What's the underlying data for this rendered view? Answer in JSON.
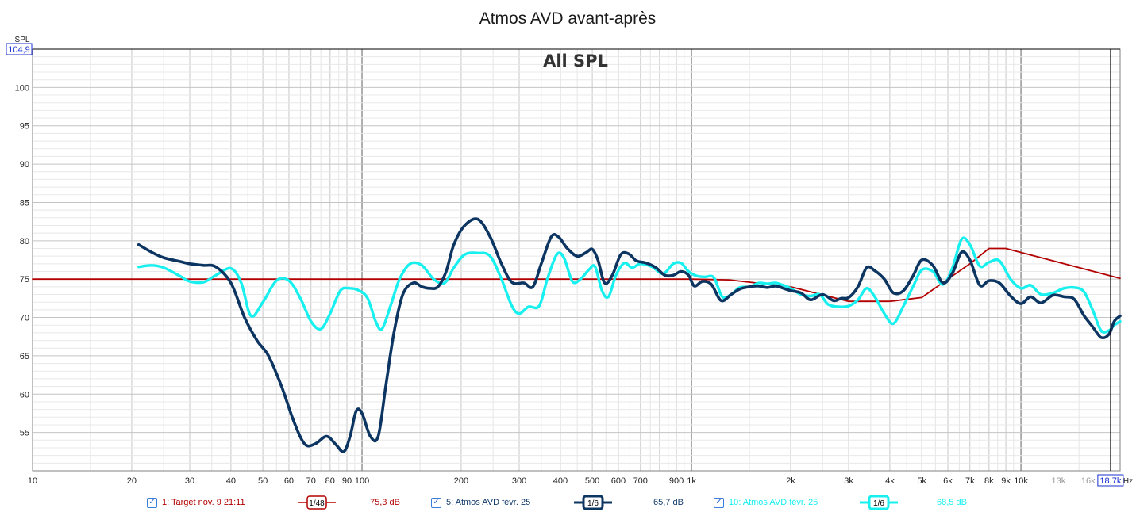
{
  "window": {
    "title": "Atmos AVD avant-après"
  },
  "overlay_title": "All SPL",
  "cursor_readouts": {
    "y_value": "104,9",
    "x_value": "18,7k"
  },
  "chart_data": {
    "type": "line",
    "title": "Atmos AVD avant-après",
    "ylabel": "SPL",
    "xlabel": "Hz",
    "x_scale": "log",
    "xlim": [
      10,
      20000
    ],
    "ylim": [
      50,
      105
    ],
    "grid": true,
    "y_ticks": [
      55,
      60,
      65,
      70,
      75,
      80,
      85,
      90,
      95,
      100
    ],
    "x_ticks": [
      {
        "v": 10,
        "label": "10"
      },
      {
        "v": 20,
        "label": "20"
      },
      {
        "v": 30,
        "label": "30"
      },
      {
        "v": 40,
        "label": "40"
      },
      {
        "v": 50,
        "label": "50"
      },
      {
        "v": 60,
        "label": "60"
      },
      {
        "v": 70,
        "label": "70"
      },
      {
        "v": 80,
        "label": "80"
      },
      {
        "v": 90,
        "label": "90"
      },
      {
        "v": 100,
        "label": "100"
      },
      {
        "v": 200,
        "label": "200"
      },
      {
        "v": 300,
        "label": "300"
      },
      {
        "v": 400,
        "label": "400"
      },
      {
        "v": 500,
        "label": "500"
      },
      {
        "v": 600,
        "label": "600"
      },
      {
        "v": 700,
        "label": "700"
      },
      {
        "v": 900,
        "label": "900"
      },
      {
        "v": 1000,
        "label": "1k"
      },
      {
        "v": 2000,
        "label": "2k"
      },
      {
        "v": 3000,
        "label": "3k"
      },
      {
        "v": 4000,
        "label": "4k"
      },
      {
        "v": 5000,
        "label": "5k"
      },
      {
        "v": 6000,
        "label": "6k"
      },
      {
        "v": 7000,
        "label": "7k"
      },
      {
        "v": 8000,
        "label": "8k"
      },
      {
        "v": 9000,
        "label": "9k"
      },
      {
        "v": 10000,
        "label": "10k"
      },
      {
        "v": 13000,
        "label": "13k",
        "minor": true
      },
      {
        "v": 16000,
        "label": "16k",
        "minor": true
      }
    ],
    "series": [
      {
        "name": "1: Target nov. 9 21:11",
        "color": "#b30000",
        "smoothing": "1/48",
        "level": "75,3 dB",
        "points": [
          [
            10,
            75
          ],
          [
            1000,
            75
          ],
          [
            1300,
            74.9
          ],
          [
            2000,
            74
          ],
          [
            3000,
            72.1
          ],
          [
            4000,
            72.1
          ],
          [
            5000,
            72.6
          ],
          [
            6000,
            75
          ],
          [
            7000,
            77
          ],
          [
            8000,
            79
          ],
          [
            9000,
            79
          ],
          [
            20000,
            75.1
          ]
        ]
      },
      {
        "name": "5: Atmos AVD févr. 25",
        "color": "#0d3561",
        "smoothing": "1/6",
        "level": "65,7 dB",
        "points": [
          [
            21,
            79.5
          ],
          [
            23,
            78.5
          ],
          [
            25,
            77.8
          ],
          [
            28,
            77.3
          ],
          [
            30,
            77
          ],
          [
            33,
            76.8
          ],
          [
            36,
            76.6
          ],
          [
            40,
            74.5
          ],
          [
            44,
            70
          ],
          [
            48,
            67
          ],
          [
            52,
            65
          ],
          [
            57,
            61
          ],
          [
            62,
            56.5
          ],
          [
            67,
            53.5
          ],
          [
            72,
            53.5
          ],
          [
            78,
            54.5
          ],
          [
            83,
            53.5
          ],
          [
            88,
            52.5
          ],
          [
            92,
            54.5
          ],
          [
            96,
            57.8
          ],
          [
            100,
            57.5
          ],
          [
            106,
            54.5
          ],
          [
            112,
            54.5
          ],
          [
            118,
            61
          ],
          [
            125,
            68
          ],
          [
            133,
            73
          ],
          [
            143,
            74.5
          ],
          [
            152,
            74
          ],
          [
            160,
            73.8
          ],
          [
            170,
            74
          ],
          [
            180,
            76
          ],
          [
            190,
            79.5
          ],
          [
            205,
            82
          ],
          [
            225,
            82.8
          ],
          [
            245,
            80.5
          ],
          [
            265,
            77
          ],
          [
            285,
            74.6
          ],
          [
            310,
            74.5
          ],
          [
            330,
            74
          ],
          [
            350,
            77
          ],
          [
            375,
            80.5
          ],
          [
            395,
            80.5
          ],
          [
            420,
            79
          ],
          [
            450,
            78
          ],
          [
            480,
            78.5
          ],
          [
            500,
            78.9
          ],
          [
            520,
            77.5
          ],
          [
            545,
            74.5
          ],
          [
            575,
            75.5
          ],
          [
            610,
            78.2
          ],
          [
            645,
            78.3
          ],
          [
            680,
            77.4
          ],
          [
            730,
            77.1
          ],
          [
            780,
            76.5
          ],
          [
            830,
            75.5
          ],
          [
            880,
            75.5
          ],
          [
            930,
            76
          ],
          [
            980,
            75.5
          ],
          [
            1020,
            74.1
          ],
          [
            1080,
            74.7
          ],
          [
            1150,
            74.3
          ],
          [
            1230,
            72.2
          ],
          [
            1320,
            73
          ],
          [
            1400,
            73.7
          ],
          [
            1500,
            74
          ],
          [
            1600,
            74.1
          ],
          [
            1700,
            73.9
          ],
          [
            1800,
            74.1
          ],
          [
            1900,
            73.8
          ],
          [
            2000,
            73.5
          ],
          [
            2150,
            73.2
          ],
          [
            2300,
            72.3
          ],
          [
            2500,
            73
          ],
          [
            2700,
            72.2
          ],
          [
            2850,
            72.5
          ],
          [
            3000,
            72.6
          ],
          [
            3200,
            74
          ],
          [
            3400,
            76.5
          ],
          [
            3600,
            76.1
          ],
          [
            3850,
            75
          ],
          [
            4100,
            73.2
          ],
          [
            4400,
            73.5
          ],
          [
            4700,
            75.4
          ],
          [
            5000,
            77.5
          ],
          [
            5400,
            76.8
          ],
          [
            5800,
            74.5
          ],
          [
            6200,
            75.8
          ],
          [
            6600,
            78.5
          ],
          [
            7000,
            77.5
          ],
          [
            7500,
            74.2
          ],
          [
            8000,
            74.8
          ],
          [
            8600,
            74.5
          ],
          [
            9300,
            72.8
          ],
          [
            10000,
            71.8
          ],
          [
            10700,
            72.7
          ],
          [
            11500,
            71.9
          ],
          [
            12500,
            72.9
          ],
          [
            13500,
            72.7
          ],
          [
            14500,
            72.4
          ],
          [
            15500,
            70.3
          ],
          [
            16500,
            68.8
          ],
          [
            17500,
            67.4
          ],
          [
            18500,
            67.8
          ],
          [
            19200,
            69.5
          ],
          [
            20000,
            70.2
          ]
        ]
      },
      {
        "name": "10: Atmos AVD févr. 25",
        "color": "#18f0f0",
        "smoothing": "1/6",
        "level": "68,5 dB",
        "points": [
          [
            21,
            76.6
          ],
          [
            23,
            76.8
          ],
          [
            25,
            76.5
          ],
          [
            28,
            75.4
          ],
          [
            30,
            74.7
          ],
          [
            33,
            74.6
          ],
          [
            36,
            75.5
          ],
          [
            40,
            76.4
          ],
          [
            43,
            74.5
          ],
          [
            46,
            70.2
          ],
          [
            50,
            72
          ],
          [
            55,
            74.8
          ],
          [
            60,
            74.8
          ],
          [
            65,
            72.5
          ],
          [
            70,
            69.5
          ],
          [
            75,
            68.5
          ],
          [
            80,
            70.5
          ],
          [
            86,
            73.5
          ],
          [
            92,
            73.8
          ],
          [
            98,
            73.5
          ],
          [
            104,
            72.5
          ],
          [
            110,
            69.5
          ],
          [
            115,
            68.5
          ],
          [
            122,
            71.5
          ],
          [
            130,
            75
          ],
          [
            140,
            77
          ],
          [
            152,
            76.8
          ],
          [
            165,
            75
          ],
          [
            178,
            74.5
          ],
          [
            190,
            76.5
          ],
          [
            205,
            78.2
          ],
          [
            225,
            78.4
          ],
          [
            245,
            78
          ],
          [
            265,
            75
          ],
          [
            285,
            71.5
          ],
          [
            300,
            70.5
          ],
          [
            320,
            71.4
          ],
          [
            345,
            71.5
          ],
          [
            365,
            75
          ],
          [
            390,
            78.2
          ],
          [
            410,
            77.8
          ],
          [
            435,
            74.7
          ],
          [
            460,
            75
          ],
          [
            490,
            76.3
          ],
          [
            510,
            76.6
          ],
          [
            535,
            73.5
          ],
          [
            560,
            72.7
          ],
          [
            590,
            75.5
          ],
          [
            625,
            77.1
          ],
          [
            660,
            76.5
          ],
          [
            700,
            77
          ],
          [
            760,
            76.6
          ],
          [
            820,
            75.7
          ],
          [
            880,
            77
          ],
          [
            930,
            77.1
          ],
          [
            980,
            76
          ],
          [
            1040,
            75.4
          ],
          [
            1100,
            75.3
          ],
          [
            1170,
            75.2
          ],
          [
            1240,
            72.7
          ],
          [
            1320,
            73
          ],
          [
            1400,
            73.9
          ],
          [
            1500,
            74
          ],
          [
            1600,
            74.5
          ],
          [
            1700,
            74.4
          ],
          [
            1800,
            74.5
          ],
          [
            1900,
            74.2
          ],
          [
            2000,
            73.8
          ],
          [
            2150,
            73
          ],
          [
            2300,
            72.8
          ],
          [
            2450,
            73
          ],
          [
            2600,
            71.7
          ],
          [
            2800,
            71.4
          ],
          [
            3000,
            71.5
          ],
          [
            3200,
            72.3
          ],
          [
            3400,
            73.8
          ],
          [
            3600,
            72.7
          ],
          [
            3850,
            70.5
          ],
          [
            4100,
            69.2
          ],
          [
            4400,
            71.5
          ],
          [
            4700,
            74
          ],
          [
            5000,
            76.2
          ],
          [
            5400,
            76
          ],
          [
            5800,
            74.3
          ],
          [
            6200,
            76.5
          ],
          [
            6600,
            80.2
          ],
          [
            7000,
            79.5
          ],
          [
            7500,
            76.7
          ],
          [
            8000,
            77.2
          ],
          [
            8600,
            77.4
          ],
          [
            9300,
            75
          ],
          [
            10000,
            73.8
          ],
          [
            10700,
            74.2
          ],
          [
            11500,
            73
          ],
          [
            12500,
            73.2
          ],
          [
            13500,
            73.8
          ],
          [
            14500,
            73.9
          ],
          [
            15500,
            73.4
          ],
          [
            16500,
            71
          ],
          [
            17500,
            68.3
          ],
          [
            18500,
            68.3
          ],
          [
            19200,
            69
          ],
          [
            20000,
            69.5
          ]
        ]
      }
    ]
  },
  "legend": [
    {
      "checked": true,
      "label": "1: Target nov. 9 21:11",
      "smoothing": "1/48",
      "level": "75,3 dB",
      "color": "#b30000"
    },
    {
      "checked": true,
      "label": "5: Atmos AVD févr. 25",
      "smoothing": "1/6",
      "level": "65,7 dB",
      "color": "#0d3561"
    },
    {
      "checked": true,
      "label": "10: Atmos AVD févr. 25",
      "smoothing": "1/6",
      "level": "68,5 dB",
      "color": "#18f0f0"
    }
  ]
}
